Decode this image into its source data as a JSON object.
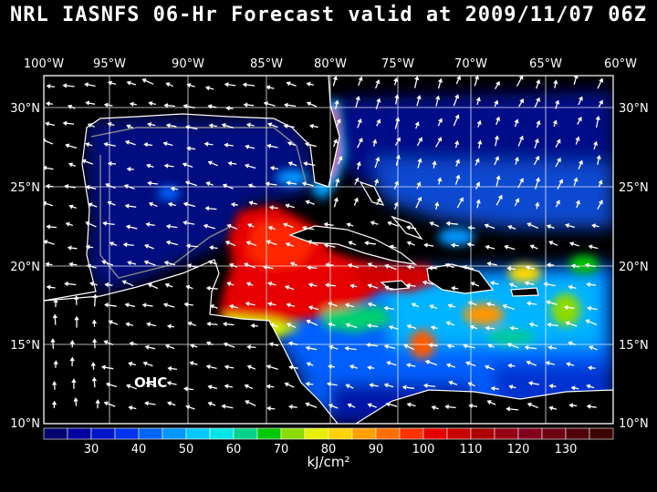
{
  "title": "NRL IASNFS  06-Hr Forecast valid at 2009/11/07 06Z",
  "field_label": "OHC",
  "units": "kJ/cm²",
  "lon_labels": [
    "100°W",
    "95°W",
    "90°W",
    "85°W",
    "80°W",
    "75°W",
    "70°W",
    "65°W",
    "60°W"
  ],
  "lat_labels": [
    "30°N",
    "25°N",
    "20°N",
    "15°N",
    "10°N"
  ],
  "colorbar": {
    "tick_labels": [
      "30",
      "40",
      "50",
      "60",
      "70",
      "80",
      "90",
      "100",
      "110",
      "120",
      "130"
    ],
    "colors": [
      "#00006e",
      "#0000a0",
      "#0014c8",
      "#0032f0",
      "#0064ff",
      "#0096ff",
      "#00c8ff",
      "#00e6e6",
      "#00d28c",
      "#00c800",
      "#8cdc00",
      "#e6f000",
      "#ffd200",
      "#ffa000",
      "#ff6e00",
      "#ff3200",
      "#e60000",
      "#c80000",
      "#aa0000",
      "#960014",
      "#82001e",
      "#6e0014",
      "#50000a",
      "#3c0000"
    ]
  },
  "colors": {
    "background": "#000000",
    "ocean_deep": "#000a78",
    "land": "#000000",
    "coastline": "#ffffff",
    "grid": "#ffffff",
    "vectors": "#ffffff"
  }
}
